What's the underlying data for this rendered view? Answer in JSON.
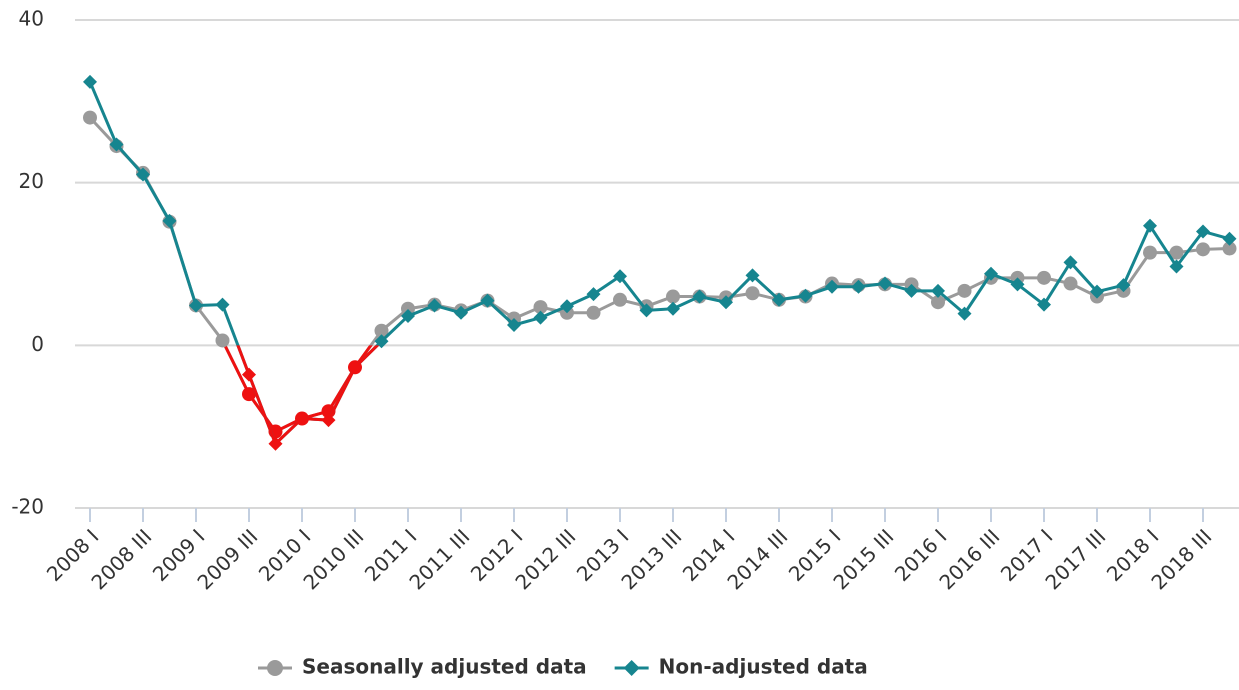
{
  "chart_data": {
    "type": "line",
    "categories": [
      "2008 I",
      null,
      "2008 III",
      null,
      "2009 I",
      null,
      "2009 III",
      null,
      "2010 I",
      null,
      "2010 III",
      null,
      "2011 I",
      null,
      "2011 III",
      null,
      "2012 I",
      null,
      "2012 III",
      null,
      "2013 I",
      null,
      "2013 III",
      null,
      "2014 I",
      null,
      "2014 III",
      null,
      "2015 I",
      null,
      "2015 III",
      null,
      "2016 I",
      null,
      "2016 III",
      null,
      "2017 I",
      null,
      "2017 III",
      null,
      "2018 I",
      null,
      "2018 III",
      null
    ],
    "series": [
      {
        "name": "Seasonally adjusted data",
        "color": "#9a9a9a",
        "marker": "circle",
        "values": [
          28.0,
          24.5,
          21.2,
          15.2,
          4.9,
          0.6,
          -6.0,
          -10.6,
          -9.0,
          -8.1,
          -2.7,
          1.8,
          4.5,
          5.0,
          4.3,
          5.5,
          3.3,
          4.7,
          4.0,
          4.0,
          5.6,
          4.8,
          6.0,
          6.0,
          5.9,
          6.4,
          5.6,
          6.0,
          7.6,
          7.4,
          7.5,
          7.5,
          5.3,
          6.7,
          8.3,
          8.3,
          8.3,
          7.6,
          6.0,
          6.7,
          11.4,
          11.4,
          11.8,
          11.9
        ]
      },
      {
        "name": "Non-adjusted data",
        "color": "#16858f",
        "marker": "diamond",
        "values": [
          32.4,
          24.7,
          21.0,
          15.3,
          4.9,
          5.0,
          -3.6,
          -12.1,
          -9.0,
          -9.2,
          -2.7,
          0.5,
          3.6,
          4.9,
          4.0,
          5.5,
          2.5,
          3.4,
          4.8,
          6.3,
          8.5,
          4.3,
          4.5,
          6.0,
          5.3,
          8.6,
          5.6,
          6.1,
          7.2,
          7.2,
          7.6,
          6.7,
          6.7,
          3.9,
          8.8,
          7.5,
          5.0,
          10.2,
          6.6,
          7.4,
          14.7,
          9.7,
          14.0,
          13.1
        ]
      }
    ],
    "negative_color": "#ee1111",
    "ylim": [
      -20,
      40
    ],
    "yticks": [
      -20,
      0,
      20,
      40
    ],
    "grid": true,
    "legend": "bottom"
  }
}
